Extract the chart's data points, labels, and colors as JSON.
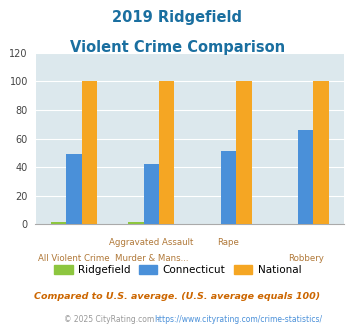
{
  "title_line1": "2019 Ridgefield",
  "title_line2": "Violent Crime Comparison",
  "cat_labels_top": [
    "",
    "Aggravated Assault",
    "Rape",
    ""
  ],
  "cat_labels_bot": [
    "All Violent Crime",
    "Murder & Mans...",
    "",
    "Robbery"
  ],
  "series": {
    "Ridgefield": [
      2,
      2,
      0,
      0
    ],
    "Connecticut": [
      49,
      42,
      51,
      66
    ],
    "National": [
      100,
      100,
      100,
      100
    ]
  },
  "colors": {
    "Ridgefield": "#8dc63f",
    "Connecticut": "#4a90d9",
    "National": "#f5a623"
  },
  "ylim": [
    0,
    120
  ],
  "yticks": [
    0,
    20,
    40,
    60,
    80,
    100,
    120
  ],
  "plot_bg": "#dce8ed",
  "title_color": "#1a6fa0",
  "xlabel_color": "#b07838",
  "footnote1": "Compared to U.S. average. (U.S. average equals 100)",
  "footnote2": "© 2025 CityRating.com - https://www.cityrating.com/crime-statistics/",
  "footnote1_color": "#cc6600",
  "footnote2_color": "#999999",
  "link_color": "#4a90d9"
}
